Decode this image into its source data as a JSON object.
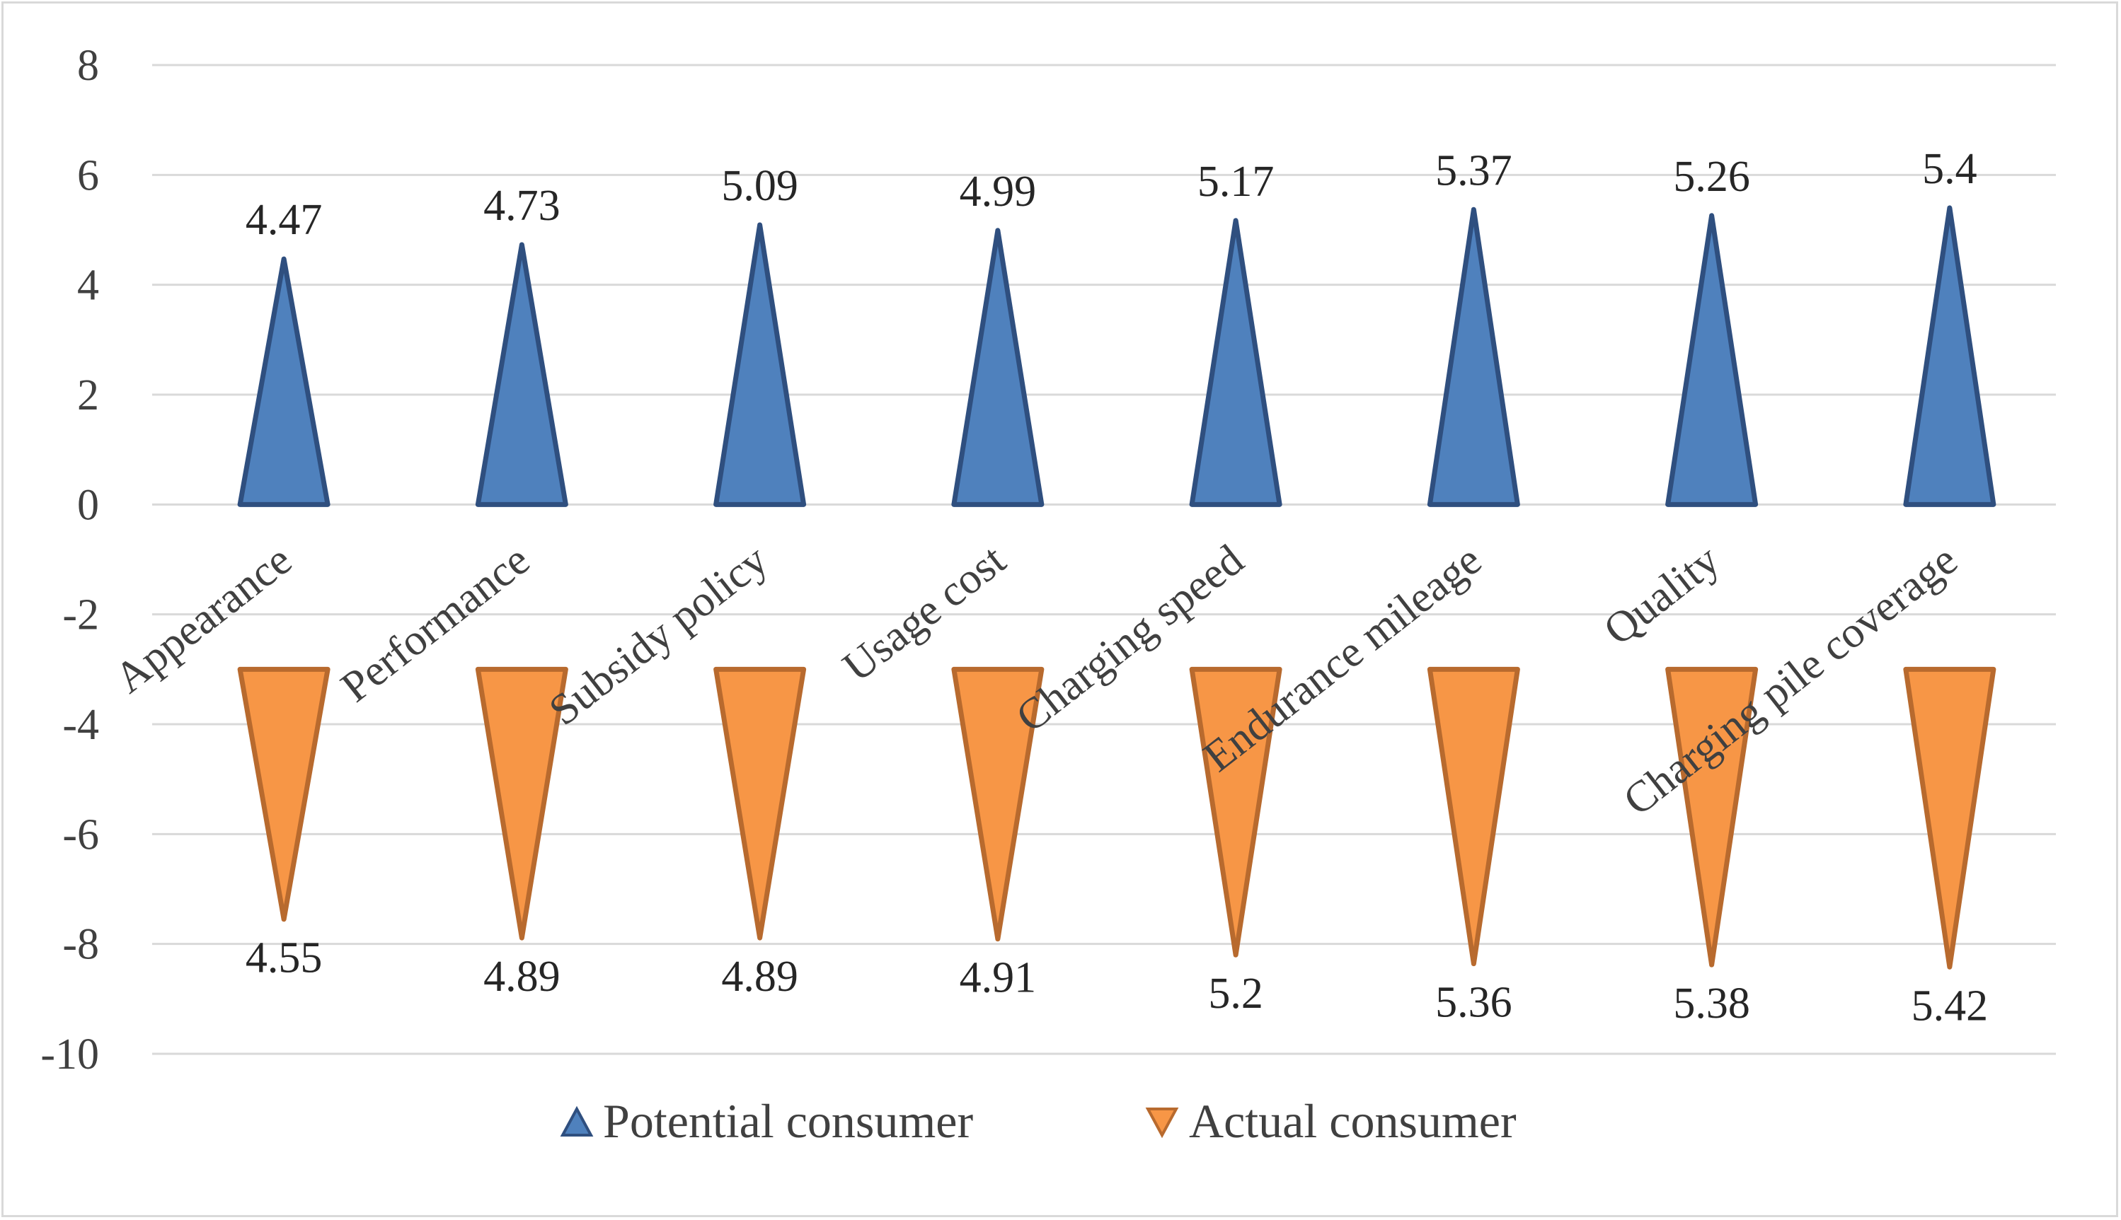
{
  "chart_data": {
    "type": "bar",
    "mark": "triangle",
    "title": "",
    "xlabel": "",
    "ylabel": "",
    "ylim": [
      -10,
      8
    ],
    "yticks": [
      8,
      6,
      4,
      2,
      0,
      -2,
      -4,
      -6,
      -8,
      -10
    ],
    "grid": true,
    "legend_position": "bottom",
    "categories": [
      "Appearance",
      "Performance",
      "Subsidy policy",
      "Usage cost",
      "Charging speed",
      "Endurance mileage",
      "Quality",
      "Charging pile coverage"
    ],
    "series": [
      {
        "name": "Potential consumer",
        "color": "#4f81bd",
        "edge_color": "#2f4f7f",
        "direction": "up",
        "base": 0,
        "values": [
          4.47,
          4.73,
          5.09,
          4.99,
          5.17,
          5.37,
          5.26,
          5.4
        ],
        "labels": [
          "4.47",
          "4.73",
          "5.09",
          "4.99",
          "5.17",
          "5.37",
          "5.26",
          "5.4"
        ]
      },
      {
        "name": "Actual consumer",
        "color": "#f79646",
        "edge_color": "#b86a2e",
        "direction": "down",
        "base": -3,
        "values": [
          4.55,
          4.89,
          4.89,
          4.91,
          5.2,
          5.36,
          5.38,
          5.42
        ],
        "labels": [
          "4.55",
          "4.89",
          "4.89",
          "4.91",
          "5.2",
          "5.36",
          "5.38",
          "5.42"
        ]
      }
    ]
  }
}
